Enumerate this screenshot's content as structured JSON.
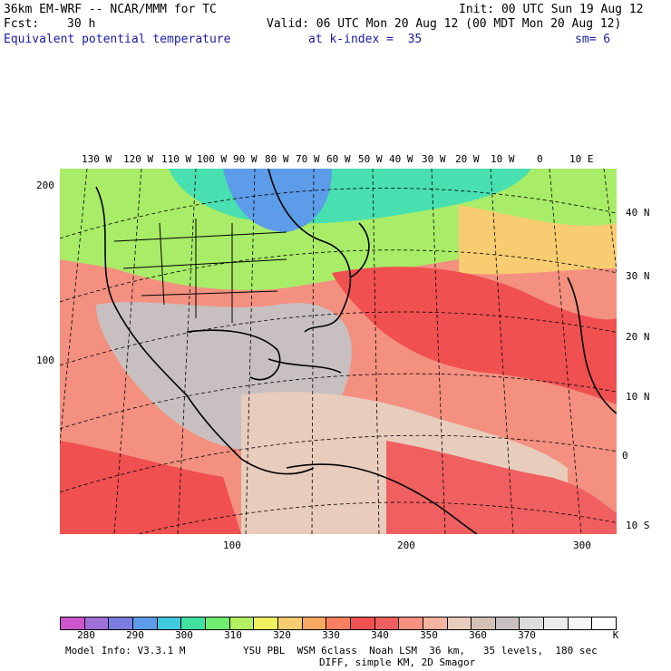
{
  "header": {
    "model_title": "36km EM-WRF -- NCAR/MMM for TC",
    "init": "Init: 00 UTC Sun 19 Aug 12",
    "fcst_label": "Fcst:",
    "fcst_value": "30 h",
    "valid": "Valid: 06 UTC Mon 20 Aug 12 (00 MDT Mon 20 Aug 12)",
    "field": "Equivalent potential temperature",
    "level": "at k-index =  35",
    "smooth": "sm= 6"
  },
  "map": {
    "top_lon_labels": [
      "130 W",
      "120 W",
      "110 W",
      "100 W",
      "90 W",
      "80 W",
      "70 W",
      "60 W",
      "50 W",
      "40 W",
      "30 W",
      "20 W",
      "10 W",
      "0",
      "10 E"
    ],
    "right_lat_labels": [
      "40 N",
      "30 N",
      "20 N",
      "10 N",
      "0",
      "10 S"
    ],
    "left_grid_labels": [
      "200",
      "100"
    ],
    "bottom_grid_labels": [
      "100",
      "200",
      "300"
    ]
  },
  "colorbar": {
    "colors": [
      "#cc55cc",
      "#a070d8",
      "#7c7ce0",
      "#5c9ce8",
      "#40c8e0",
      "#40e0a0",
      "#70ec70",
      "#b4f060",
      "#f0f060",
      "#f8cc70",
      "#f8a860",
      "#f88060",
      "#f05050",
      "#f06060",
      "#f89080",
      "#f4b4a0",
      "#e8ccbc",
      "#d4c0b4",
      "#c8c0c0",
      "#dcdcdc",
      "#ececec",
      "#f6f6f6",
      "#ffffff"
    ],
    "labels": [
      "280",
      "290",
      "300",
      "310",
      "320",
      "330",
      "340",
      "350",
      "360",
      "370",
      "K"
    ]
  },
  "footer": {
    "line1_left": "Model Info: V3.3.1 M",
    "line1_right": "YSU PBL  WSM 6class  Noah LSM  36 km,   35 levels,  180 sec",
    "line2": "DIFF, simple KM, 2D Smagor"
  }
}
